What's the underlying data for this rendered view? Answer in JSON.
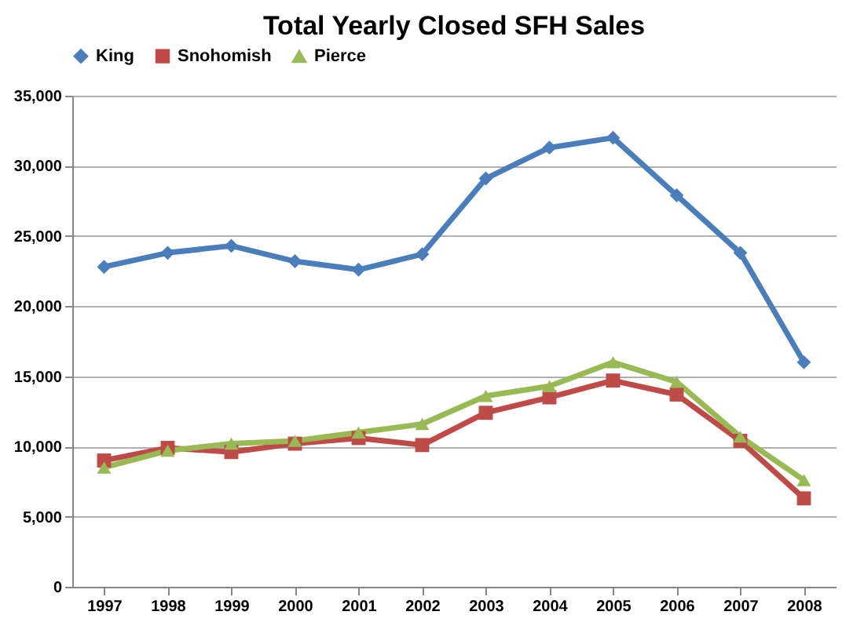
{
  "chart_data": {
    "type": "line",
    "title": "Total Yearly Closed SFH Sales",
    "categories": [
      "1997",
      "1998",
      "1999",
      "2000",
      "2001",
      "2002",
      "2003",
      "2004",
      "2005",
      "2006",
      "2007",
      "2008"
    ],
    "series": [
      {
        "name": "King",
        "color": "#4a7ebb",
        "marker": "diamond",
        "values": [
          22800,
          23800,
          24300,
          23200,
          22600,
          23700,
          29100,
          31300,
          32000,
          27900,
          23800,
          16000
        ]
      },
      {
        "name": "Snohomish",
        "color": "#be4b48",
        "marker": "square",
        "values": [
          9000,
          9900,
          9600,
          10200,
          10600,
          10100,
          12400,
          13500,
          14700,
          13700,
          10400,
          6300
        ]
      },
      {
        "name": "Pierce",
        "color": "#98b954",
        "marker": "triangle",
        "values": [
          8500,
          9700,
          10200,
          10400,
          11000,
          11600,
          13600,
          14300,
          16000,
          14600,
          10700,
          7600
        ]
      }
    ],
    "ylim": [
      0,
      35000
    ],
    "yticks": [
      {
        "value": 0,
        "label": "0"
      },
      {
        "value": 5000,
        "label": "5,000"
      },
      {
        "value": 10000,
        "label": "10,000"
      },
      {
        "value": 15000,
        "label": "15,000"
      },
      {
        "value": 20000,
        "label": "20,000"
      },
      {
        "value": 25000,
        "label": "25,000"
      },
      {
        "value": 30000,
        "label": "30,000"
      },
      {
        "value": 35000,
        "label": "35,000"
      }
    ],
    "grid": "y",
    "legend": "top",
    "line_style": "solid"
  }
}
